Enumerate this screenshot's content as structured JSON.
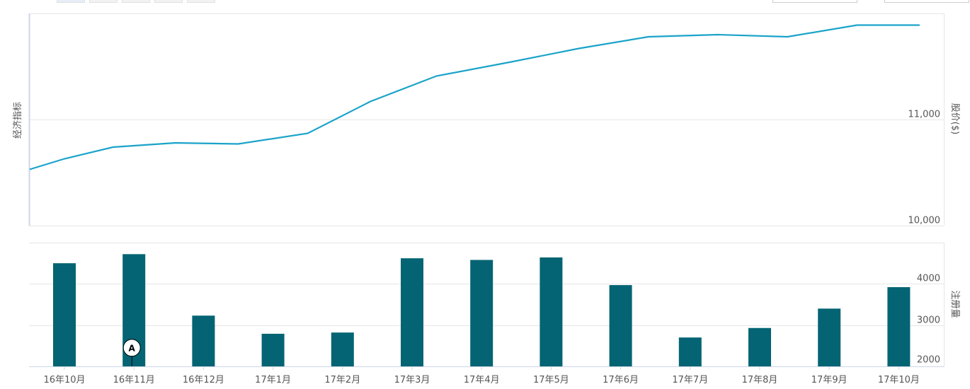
{
  "colors": {
    "line": "#1aa3c9",
    "bar": "#046473",
    "grid": "#e6e6e6",
    "marker_fill": "#ffffff",
    "marker_stroke": "#000000"
  },
  "chart_data": {
    "type": "line+bar",
    "categories": [
      "16年10月",
      "16年11月",
      "16年12月",
      "17年1月",
      "17年2月",
      "17年3月",
      "17年4月",
      "17年5月",
      "17年6月",
      "17年7月",
      "17年8月",
      "17年9月",
      "17年10月"
    ],
    "price_panel": {
      "left_axis_title": "经济指标",
      "right_axis_title": "股价($)",
      "ylim": [
        10000,
        12000
      ],
      "y_ticks": [
        10000,
        11000
      ],
      "y_tick_labels": [
        "10,000",
        "11,000"
      ],
      "series": [
        {
          "type": "line",
          "x": [
            0,
            0.5,
            1.2,
            2.1,
            3.0,
            4.0,
            4.9,
            5.85,
            6.9,
            7.9,
            8.9,
            9.9,
            10.9,
            11.9,
            12.8
          ],
          "values": [
            10530,
            10630,
            10740,
            10780,
            10770,
            10870,
            11170,
            11410,
            11540,
            11670,
            11780,
            11800,
            11780,
            11890,
            11890
          ]
        }
      ]
    },
    "volume_panel": {
      "right_axis_title": "注册量",
      "ylim": [
        2000,
        5000
      ],
      "y_ticks": [
        2000,
        3000,
        4000
      ],
      "y_tick_labels": [
        "2000",
        "3000",
        "4000"
      ],
      "series": [
        {
          "type": "bar",
          "values": [
            4500,
            4720,
            3230,
            2790,
            2820,
            4620,
            4580,
            4640,
            3970,
            2700,
            2930,
            3400,
            3920
          ]
        }
      ]
    },
    "annotations": [
      {
        "label": "A",
        "category": "16年11月",
        "value": 2450
      }
    ],
    "grid": true
  }
}
